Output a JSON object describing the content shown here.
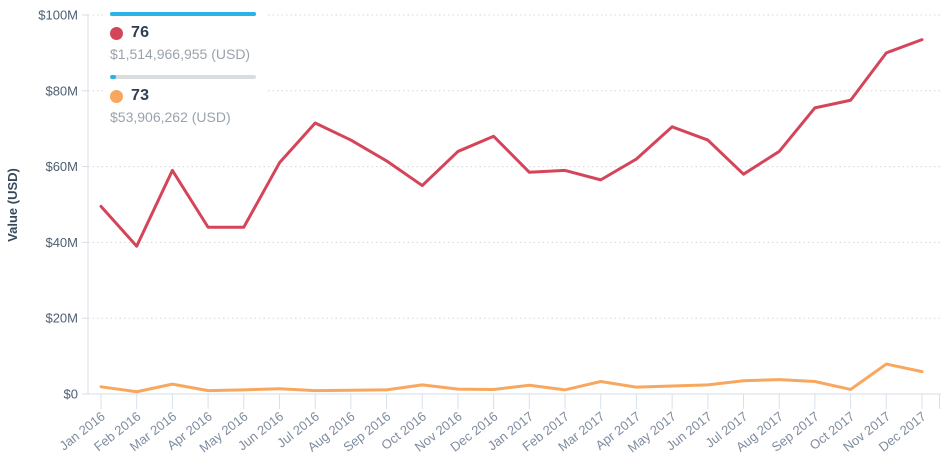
{
  "legend": {
    "entries": [
      {
        "label": "76",
        "value": "$1,514,966,955 (USD)",
        "dot_color": "#d5455a",
        "bar_fill_color": "#2bb3e7",
        "bar_track_color": "#2bb3e7",
        "bar_fill_pct": 100
      },
      {
        "label": "73",
        "value": "$53,906,262 (USD)",
        "dot_color": "#f8a75f",
        "bar_fill_color": "#2bb3e7",
        "bar_track_color": "#dadde0",
        "bar_fill_pct": 4
      }
    ]
  },
  "chart_data": {
    "type": "line",
    "title": "",
    "xlabel": "",
    "ylabel": "Value (USD)",
    "values_unit": "USD millions",
    "categories": [
      "Jan 2016",
      "Feb 2016",
      "Mar 2016",
      "Apr 2016",
      "May 2016",
      "Jun 2016",
      "Jul 2016",
      "Aug 2016",
      "Sep 2016",
      "Oct 2016",
      "Nov 2016",
      "Dec 2016",
      "Jan 2017",
      "Feb 2017",
      "Mar 2017",
      "Apr 2017",
      "May 2017",
      "Jun 2017",
      "Jul 2017",
      "Aug 2017",
      "Sep 2017",
      "Oct 2017",
      "Nov 2017",
      "Dec 2017"
    ],
    "series": [
      {
        "name": "76",
        "color": "#d5455a",
        "values": [
          49.5,
          39,
          59,
          44,
          44,
          61,
          71.5,
          67,
          61.5,
          55,
          64,
          68,
          58.5,
          59,
          56.5,
          62,
          70.5,
          67,
          58,
          64,
          75.5,
          77.5,
          90,
          93.5
        ]
      },
      {
        "name": "73",
        "color": "#f8a75f",
        "values": [
          1.9,
          0.6,
          2.6,
          0.9,
          1.1,
          1.4,
          0.9,
          1.0,
          1.1,
          2.4,
          1.3,
          1.2,
          2.3,
          1.1,
          3.3,
          1.8,
          2.1,
          2.4,
          3.5,
          3.8,
          3.3,
          1.2,
          7.9,
          5.9
        ]
      }
    ],
    "ylim": [
      0,
      100
    ],
    "ytick_values": [
      0,
      20,
      40,
      60,
      80,
      100
    ],
    "ytick_labels": [
      "$0",
      "$20M",
      "$40M",
      "$60M",
      "$80M",
      "$100M"
    ],
    "legend_position": "top-left",
    "grid": "horizontal-dotted"
  },
  "colors": {
    "gridline": "#d8d8d8",
    "axis_line": "#d7dde5",
    "x_tick": "#d9e0ea",
    "ytick_text": "#4d5e72",
    "xtick_text": "#7f8c9f"
  }
}
